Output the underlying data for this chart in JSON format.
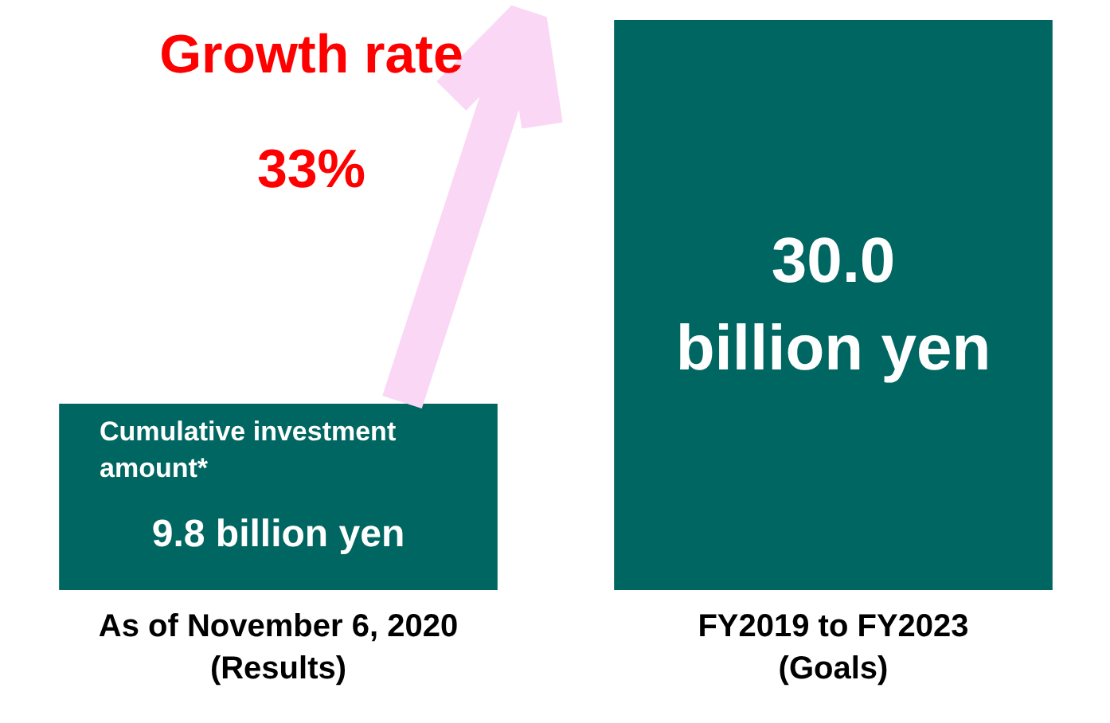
{
  "chart_data": {
    "type": "bar",
    "categories": [
      "As of November 6, 2020\n(Results)",
      "FY2019 to FY2023\n(Goals)"
    ],
    "values": [
      9.8,
      30.0
    ],
    "color": "#006661",
    "value_labels": [
      "9.8 billion yen",
      "30.0 billion yen"
    ],
    "annotations": [
      "Growth rate\n33%",
      "Cumulative investment amount*"
    ]
  }
}
